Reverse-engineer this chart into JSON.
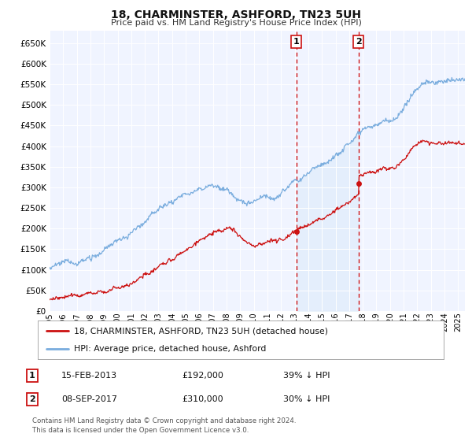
{
  "title": "18, CHARMINSTER, ASHFORD, TN23 5UH",
  "subtitle": "Price paid vs. HM Land Registry's House Price Index (HPI)",
  "legend_line1": "18, CHARMINSTER, ASHFORD, TN23 5UH (detached house)",
  "legend_line2": "HPI: Average price, detached house, Ashford",
  "transaction1_label": "1",
  "transaction1_date": "15-FEB-2013",
  "transaction1_price": "£192,000",
  "transaction1_hpi": "39% ↓ HPI",
  "transaction1_year": 2013.12,
  "transaction1_value": 192000,
  "transaction2_label": "2",
  "transaction2_date": "08-SEP-2017",
  "transaction2_price": "£310,000",
  "transaction2_hpi": "30% ↓ HPI",
  "transaction2_year": 2017.69,
  "transaction2_value": 310000,
  "footer": "Contains HM Land Registry data © Crown copyright and database right 2024.\nThis data is licensed under the Open Government Licence v3.0.",
  "hpi_color": "#7aadde",
  "price_color": "#cc1111",
  "vline_color": "#cc0000",
  "background_color": "#ffffff",
  "plot_bg_color": "#f0f4ff",
  "shade_color": "#d0e4f7",
  "ylim": [
    0,
    680000
  ],
  "xlim_start": 1995.0,
  "xlim_end": 2025.5,
  "yticks": [
    0,
    50000,
    100000,
    150000,
    200000,
    250000,
    300000,
    350000,
    400000,
    450000,
    500000,
    550000,
    600000,
    650000
  ]
}
